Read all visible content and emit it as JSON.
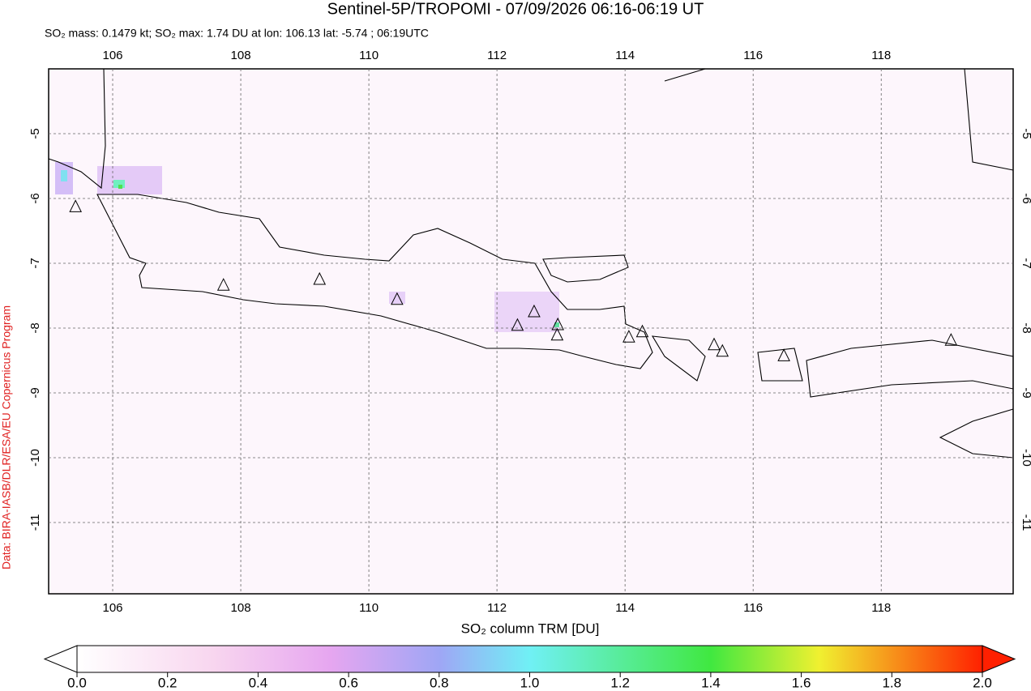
{
  "chart_data": {
    "type": "map",
    "title": "Sentinel-5P/TROPOMI - 07/09/2026 06:16-06:19 UT",
    "subtitle": "SO₂ mass: 0.1479 kt; SO₂ max: 1.74 DU at lon: 106.13 lat: -5.74 ; 06:19UTC",
    "credit": "Data: BIRA-IASB/DLR/ESA/EU Copernicus Program",
    "xlim": [
      105,
      120.06
    ],
    "ylim": [
      -12.1,
      -4
    ],
    "xticks": [
      106,
      108,
      110,
      112,
      114,
      116,
      118
    ],
    "yticks": [
      -5,
      -6,
      -7,
      -8,
      -9,
      -10,
      -11
    ],
    "grid": true,
    "volcanoes": {
      "lon": [
        105.42,
        107.73,
        109.23,
        110.44,
        112.32,
        112.58,
        112.95,
        112.94,
        114.06,
        114.27,
        115.39,
        115.52,
        116.48,
        119.09
      ],
      "lat": [
        -6.13,
        -7.34,
        -7.25,
        -7.56,
        -7.96,
        -7.75,
        -7.95,
        -8.11,
        -8.14,
        -8.06,
        -8.26,
        -8.36,
        -8.43,
        -8.19
      ]
    },
    "colorbar": {
      "label": "SO₂ column TRM [DU]",
      "lim": [
        0,
        2
      ],
      "ticks": [
        {
          "value": 0,
          "label": "0.0"
        },
        {
          "value": 0.2,
          "label": "0.2"
        },
        {
          "value": 0.4,
          "label": "0.4"
        },
        {
          "value": 0.6,
          "label": "0.6"
        },
        {
          "value": 0.8,
          "label": "0.8"
        },
        {
          "value": 1,
          "label": "1.0"
        },
        {
          "value": 1.2,
          "label": "1.2"
        },
        {
          "value": 1.4,
          "label": "1.4"
        },
        {
          "value": 1.6,
          "label": "1.6"
        },
        {
          "value": 1.8,
          "label": "1.8"
        },
        {
          "value": 2,
          "label": "2.0"
        }
      ]
    }
  }
}
